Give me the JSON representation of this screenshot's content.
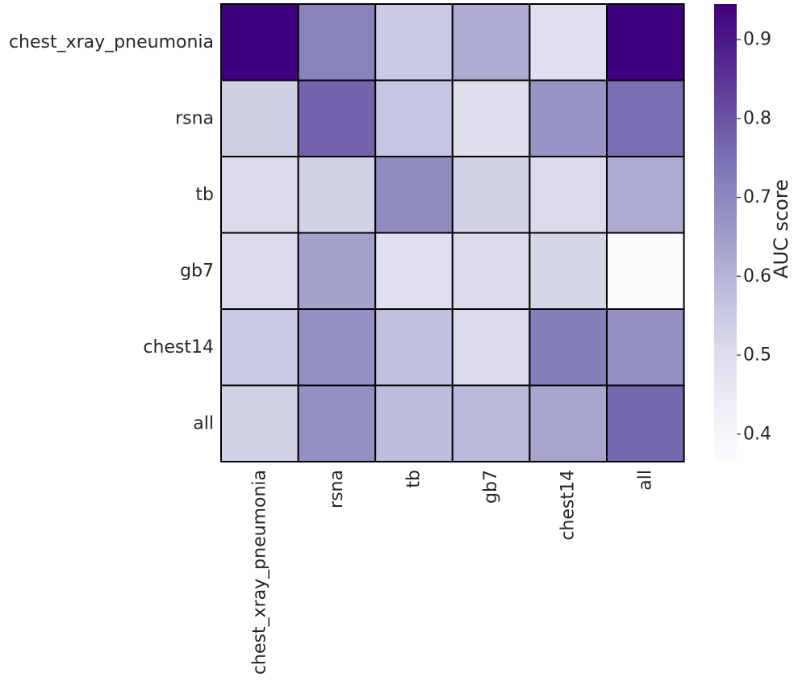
{
  "chart_data": {
    "type": "heatmap",
    "title": "",
    "xlabel": "",
    "ylabel": "",
    "row_labels": [
      "chest_xray_pneumonia",
      "rsna",
      "tb",
      "gb7",
      "chest14",
      "all"
    ],
    "col_labels": [
      "chest_xray_pneumonia",
      "rsna",
      "tb",
      "gb7",
      "chest14",
      "all"
    ],
    "values": [
      [
        0.95,
        0.71,
        0.55,
        0.62,
        0.49,
        0.95
      ],
      [
        0.54,
        0.77,
        0.56,
        0.5,
        0.67,
        0.75
      ],
      [
        0.51,
        0.53,
        0.69,
        0.53,
        0.51,
        0.62
      ],
      [
        0.51,
        0.64,
        0.49,
        0.51,
        0.52,
        0.37
      ],
      [
        0.55,
        0.68,
        0.57,
        0.51,
        0.72,
        0.68
      ],
      [
        0.53,
        0.68,
        0.58,
        0.59,
        0.63,
        0.76
      ]
    ],
    "colormap": "Purples",
    "colorbar": {
      "label": "AUC score",
      "range": [
        0.365,
        0.945
      ],
      "ticks": [
        0.4,
        0.5,
        0.6,
        0.7,
        0.8,
        0.9
      ],
      "tick_labels": [
        "0.4",
        "0.5",
        "0.6",
        "0.7",
        "0.8",
        "0.9"
      ]
    },
    "grid": true,
    "cell_border_color": "#000000"
  }
}
